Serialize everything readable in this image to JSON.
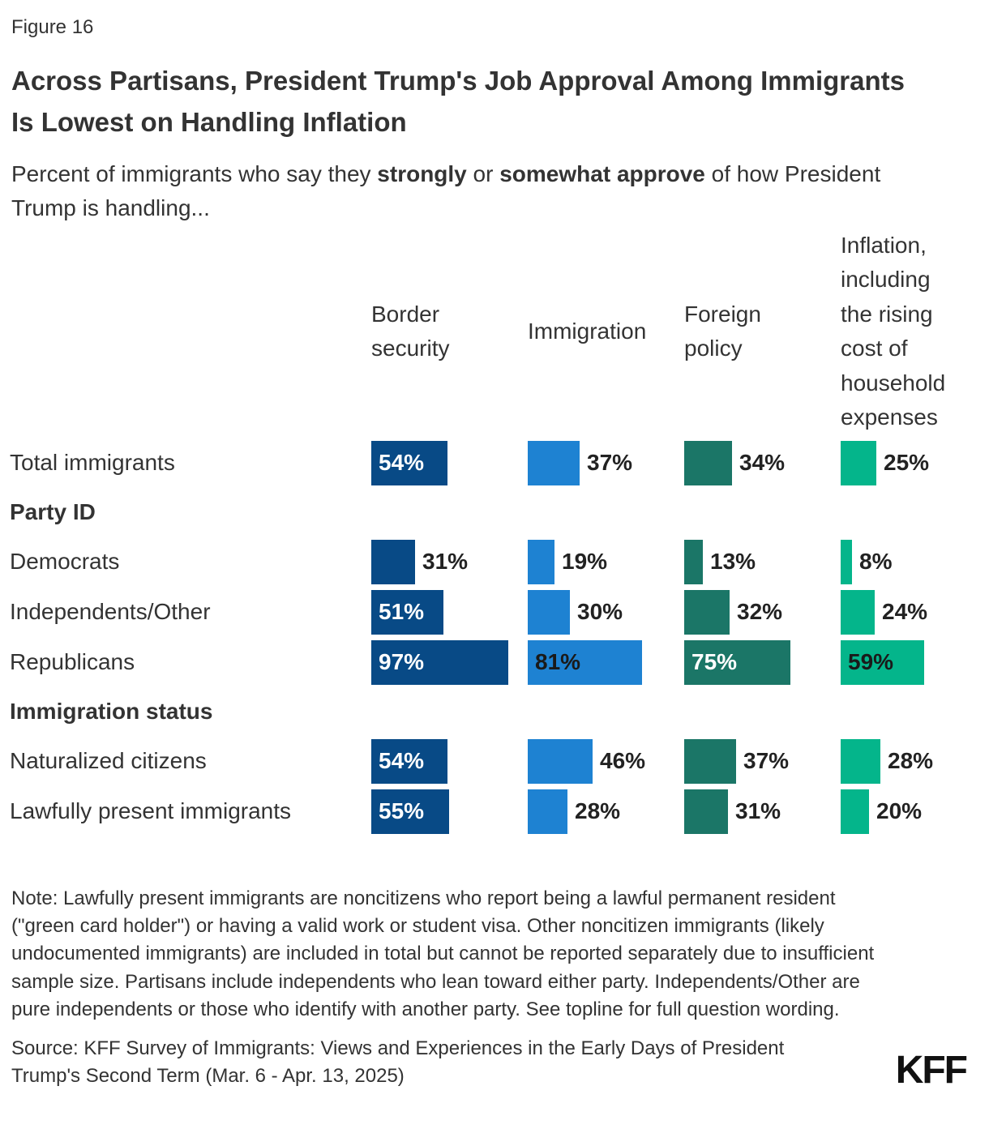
{
  "figure_label": "Figure 16",
  "title": "Across Partisans, President Trump's Job Approval Among Immigrants Is Lowest on Handling Inflation",
  "subtitle": {
    "parts": [
      {
        "text": "Percent of immigrants who say they ",
        "bold": false
      },
      {
        "text": "strongly",
        "bold": true
      },
      {
        "text": " or ",
        "bold": false
      },
      {
        "text": "somewhat approve",
        "bold": true
      },
      {
        "text": " of how President Trump is handling...",
        "bold": false
      }
    ]
  },
  "chart_data": {
    "type": "bar",
    "orientation": "horizontal",
    "unit": "%",
    "axis_max": 100,
    "legend_position": "none",
    "grid": false,
    "columns": [
      "Border security",
      "Immigration",
      "Foreign policy",
      "Inflation, including the rising cost of household expenses"
    ],
    "colors": [
      "#084A86",
      "#1E82D2",
      "#1B7667",
      "#04B58B"
    ],
    "inside_text_colors": [
      "#ffffff",
      "#1a1a1a",
      "#ffffff",
      "#1a1a1a"
    ],
    "inside_label_threshold": 50,
    "rows": [
      {
        "type": "data",
        "label": "Total immigrants",
        "values": [
          54,
          37,
          34,
          25
        ]
      },
      {
        "type": "section",
        "label": "Party ID"
      },
      {
        "type": "data",
        "label": "Democrats",
        "values": [
          31,
          19,
          13,
          8
        ]
      },
      {
        "type": "data",
        "label": "Independents/Other",
        "values": [
          51,
          30,
          32,
          24
        ]
      },
      {
        "type": "data",
        "label": "Republicans",
        "values": [
          97,
          81,
          75,
          59
        ]
      },
      {
        "type": "section",
        "label": "Immigration status"
      },
      {
        "type": "data",
        "label": "Naturalized citizens",
        "values": [
          54,
          46,
          37,
          28
        ]
      },
      {
        "type": "data",
        "label": "Lawfully present immigrants",
        "values": [
          55,
          28,
          31,
          20
        ]
      }
    ]
  },
  "note": "Note: Lawfully present immigrants are noncitizens who report being a lawful permanent resident (\"green card holder\") or having a valid work or student visa. Other noncitizen immigrants (likely undocumented immigrants) are included in total but cannot be reported separately due to insufficient sample size. Partisans include independents who lean toward either party. Independents/Other are pure independents or those who identify with another party. See topline for full question wording.",
  "source": "Source: KFF Survey of Immigrants: Views and Experiences in the Early Days of President Trump's Second Term (Mar. 6 - Apr. 13, 2025)",
  "logo": "KFF"
}
